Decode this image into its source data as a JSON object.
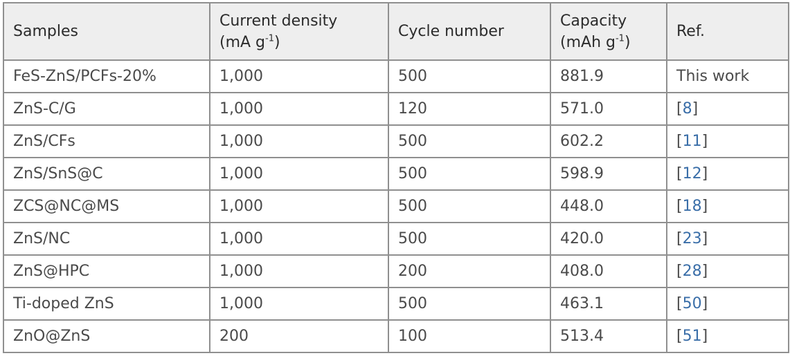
{
  "table": {
    "headers": {
      "samples": "Samples",
      "current_density": {
        "line1": "Current density",
        "unit_main": "(mA g",
        "unit_exp": "-1",
        "unit_close": ")"
      },
      "cycle_number": "Cycle number",
      "capacity": {
        "line1": "Capacity",
        "unit_main": "(mAh g",
        "unit_exp": "-1",
        "unit_close": ")"
      },
      "ref": "Ref."
    },
    "rows": [
      {
        "sample": "FeS-ZnS/PCFs-20%",
        "current_density": "1,000",
        "cycle_number": "500",
        "capacity": "881.9",
        "ref_text": "This work"
      },
      {
        "sample": "ZnS-C/G",
        "current_density": "1,000",
        "cycle_number": "120",
        "capacity": "571.0",
        "ref_num": "8"
      },
      {
        "sample": "ZnS/CFs",
        "current_density": "1,000",
        "cycle_number": "500",
        "capacity": "602.2",
        "ref_num": "11"
      },
      {
        "sample": "ZnS/SnS@C",
        "current_density": "1,000",
        "cycle_number": "500",
        "capacity": "598.9",
        "ref_num": "12"
      },
      {
        "sample": "ZCS@NC@MS",
        "current_density": "1,000",
        "cycle_number": "500",
        "capacity": "448.0",
        "ref_num": "18"
      },
      {
        "sample": "ZnS/NC",
        "current_density": "1,000",
        "cycle_number": "500",
        "capacity": "420.0",
        "ref_num": "23"
      },
      {
        "sample": "ZnS@HPC",
        "current_density": "1,000",
        "cycle_number": "200",
        "capacity": "408.0",
        "ref_num": "28"
      },
      {
        "sample": "Ti-doped ZnS",
        "current_density": "1,000",
        "cycle_number": "500",
        "capacity": "463.1",
        "ref_num": "50"
      },
      {
        "sample": "ZnO@ZnS",
        "current_density": "200",
        "cycle_number": "100",
        "capacity": "513.4",
        "ref_num": "51"
      }
    ]
  },
  "colors": {
    "header_bg": "#eeeeee",
    "border": "#8f8f8f",
    "text": "#4a4a4a",
    "link": "#3a6ea8"
  }
}
